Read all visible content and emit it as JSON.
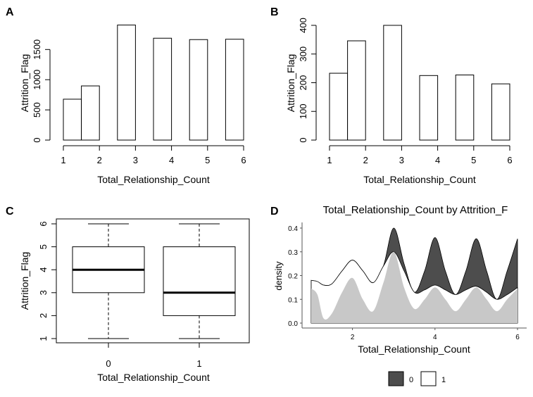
{
  "chart_data": [
    {
      "panel": "A",
      "type": "bar",
      "xlabel": "Total_Relationship_Count",
      "ylabel": "Attrition_Flag",
      "x_ticks": [
        1,
        2,
        3,
        4,
        5,
        6
      ],
      "y_ticks": [
        0,
        500,
        1000,
        1500
      ],
      "xlim": [
        1,
        6
      ],
      "ylim": [
        0,
        1900
      ],
      "bins": [
        {
          "x0": 1.0,
          "x1": 1.5,
          "value": 677
        },
        {
          "x0": 1.5,
          "x1": 2.0,
          "value": 897
        },
        {
          "x0": 2.5,
          "x1": 3.0,
          "value": 1905
        },
        {
          "x0": 3.5,
          "x1": 4.0,
          "value": 1687
        },
        {
          "x0": 4.5,
          "x1": 5.0,
          "value": 1664
        },
        {
          "x0": 5.5,
          "x1": 6.0,
          "value": 1670
        }
      ]
    },
    {
      "panel": "B",
      "type": "bar",
      "xlabel": "Total_Relationship_Count",
      "ylabel": "Attrition_Flag",
      "x_ticks": [
        1,
        2,
        3,
        4,
        5,
        6
      ],
      "y_ticks": [
        0,
        100,
        200,
        300,
        400
      ],
      "xlim": [
        1,
        6
      ],
      "ylim": [
        0,
        400
      ],
      "bins": [
        {
          "x0": 1.0,
          "x1": 1.5,
          "value": 233
        },
        {
          "x0": 1.5,
          "x1": 2.0,
          "value": 346
        },
        {
          "x0": 2.5,
          "x1": 3.0,
          "value": 400
        },
        {
          "x0": 3.5,
          "x1": 4.0,
          "value": 225
        },
        {
          "x0": 4.5,
          "x1": 5.0,
          "value": 227
        },
        {
          "x0": 5.5,
          "x1": 6.0,
          "value": 196
        }
      ]
    },
    {
      "panel": "C",
      "type": "boxplot",
      "xlabel": "Total_Relationship_Count",
      "ylabel": "Attrition_Flag",
      "categories": [
        "0",
        "1"
      ],
      "y_ticks": [
        1,
        2,
        3,
        4,
        5,
        6
      ],
      "ylim": [
        1,
        6
      ],
      "boxes": [
        {
          "label": "0",
          "min": 1,
          "q1": 3,
          "median": 4,
          "q3": 5,
          "max": 6
        },
        {
          "label": "1",
          "min": 1,
          "q1": 2,
          "median": 3,
          "q3": 5,
          "max": 6
        }
      ]
    },
    {
      "panel": "D",
      "type": "area",
      "title": "Total_Relationship_Count  by  Attrition_F",
      "xlabel": "Total_Relationship_Count",
      "ylabel": "density",
      "x_ticks": [
        2,
        4,
        6
      ],
      "y_ticks": [
        "0.0",
        "0.1",
        "0.2",
        "0.3",
        "0.4"
      ],
      "xlim": [
        1,
        6
      ],
      "ylim": [
        0,
        0.4
      ],
      "legend": {
        "position": "bottom",
        "entries": [
          {
            "label": "0",
            "color": "#4d4d4d"
          },
          {
            "label": "1",
            "color": "#ffffff"
          }
        ]
      },
      "series_upper": {
        "name": "0",
        "color": "#4d4d4d",
        "x": [
          1.0,
          1.15,
          1.3,
          1.5,
          1.75,
          2.0,
          2.25,
          2.5,
          2.75,
          3.0,
          3.25,
          3.5,
          3.75,
          4.0,
          4.25,
          4.5,
          4.75,
          5.0,
          5.25,
          5.5,
          5.75,
          6.0
        ],
        "y": [
          0.18,
          0.175,
          0.16,
          0.165,
          0.22,
          0.265,
          0.22,
          0.17,
          0.24,
          0.4,
          0.25,
          0.13,
          0.22,
          0.36,
          0.22,
          0.12,
          0.22,
          0.355,
          0.22,
          0.1,
          0.22,
          0.355
        ]
      },
      "series_mid": {
        "name": "1",
        "color": "#ffffff",
        "x": [
          1.0,
          1.15,
          1.3,
          1.5,
          1.75,
          2.0,
          2.25,
          2.5,
          2.75,
          3.0,
          3.25,
          3.5,
          3.75,
          4.0,
          4.25,
          4.5,
          4.75,
          5.0,
          5.25,
          5.5,
          5.75,
          6.0
        ],
        "y": [
          0.18,
          0.175,
          0.16,
          0.165,
          0.22,
          0.265,
          0.22,
          0.17,
          0.24,
          0.3,
          0.22,
          0.13,
          0.14,
          0.16,
          0.14,
          0.12,
          0.14,
          0.155,
          0.13,
          0.1,
          0.12,
          0.15
        ]
      },
      "series_lower": {
        "name": "1",
        "color": "#c8c8c8",
        "x": [
          1.0,
          1.15,
          1.3,
          1.5,
          1.75,
          2.0,
          2.25,
          2.5,
          2.75,
          3.0,
          3.25,
          3.5,
          3.75,
          4.0,
          4.25,
          4.5,
          4.75,
          5.0,
          5.25,
          5.5,
          5.75,
          6.0
        ],
        "y": [
          0.145,
          0.12,
          0.02,
          0.04,
          0.13,
          0.19,
          0.1,
          0.05,
          0.17,
          0.3,
          0.15,
          0.06,
          0.1,
          0.15,
          0.1,
          0.05,
          0.1,
          0.15,
          0.1,
          0.05,
          0.1,
          0.145
        ]
      }
    }
  ]
}
